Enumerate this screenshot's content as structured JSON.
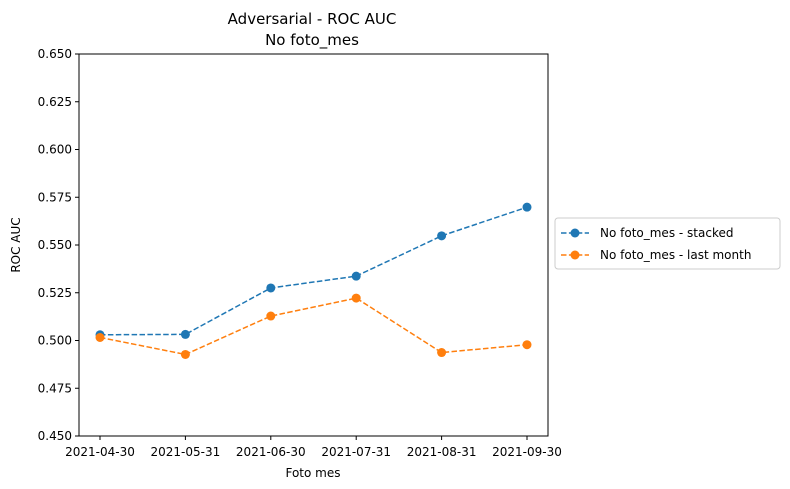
{
  "chart_data": {
    "type": "line",
    "title": "Adversarial - ROC AUC",
    "subtitle": "No foto_mes",
    "xlabel": "Foto mes",
    "ylabel": "ROC AUC",
    "ylim": [
      0.45,
      0.65
    ],
    "yticks": [
      "0.450",
      "0.475",
      "0.500",
      "0.525",
      "0.550",
      "0.575",
      "0.600",
      "0.625",
      "0.650"
    ],
    "grid": false,
    "legend_position": "right",
    "categories": [
      "2021-04-30",
      "2021-05-31",
      "2021-06-30",
      "2021-07-31",
      "2021-08-31",
      "2021-09-30"
    ],
    "series": [
      {
        "name": "No foto_mes - stacked",
        "color": "#1f77b4",
        "line_style": "dashed",
        "marker": "circle",
        "values": [
          0.503,
          0.5032,
          0.5275,
          0.5337,
          0.5548,
          0.5698
        ]
      },
      {
        "name": "No foto_mes - last month",
        "color": "#ff7f0e",
        "line_style": "dashed",
        "marker": "circle",
        "values": [
          0.5016,
          0.4927,
          0.5128,
          0.5222,
          0.4937,
          0.4978
        ]
      }
    ]
  }
}
